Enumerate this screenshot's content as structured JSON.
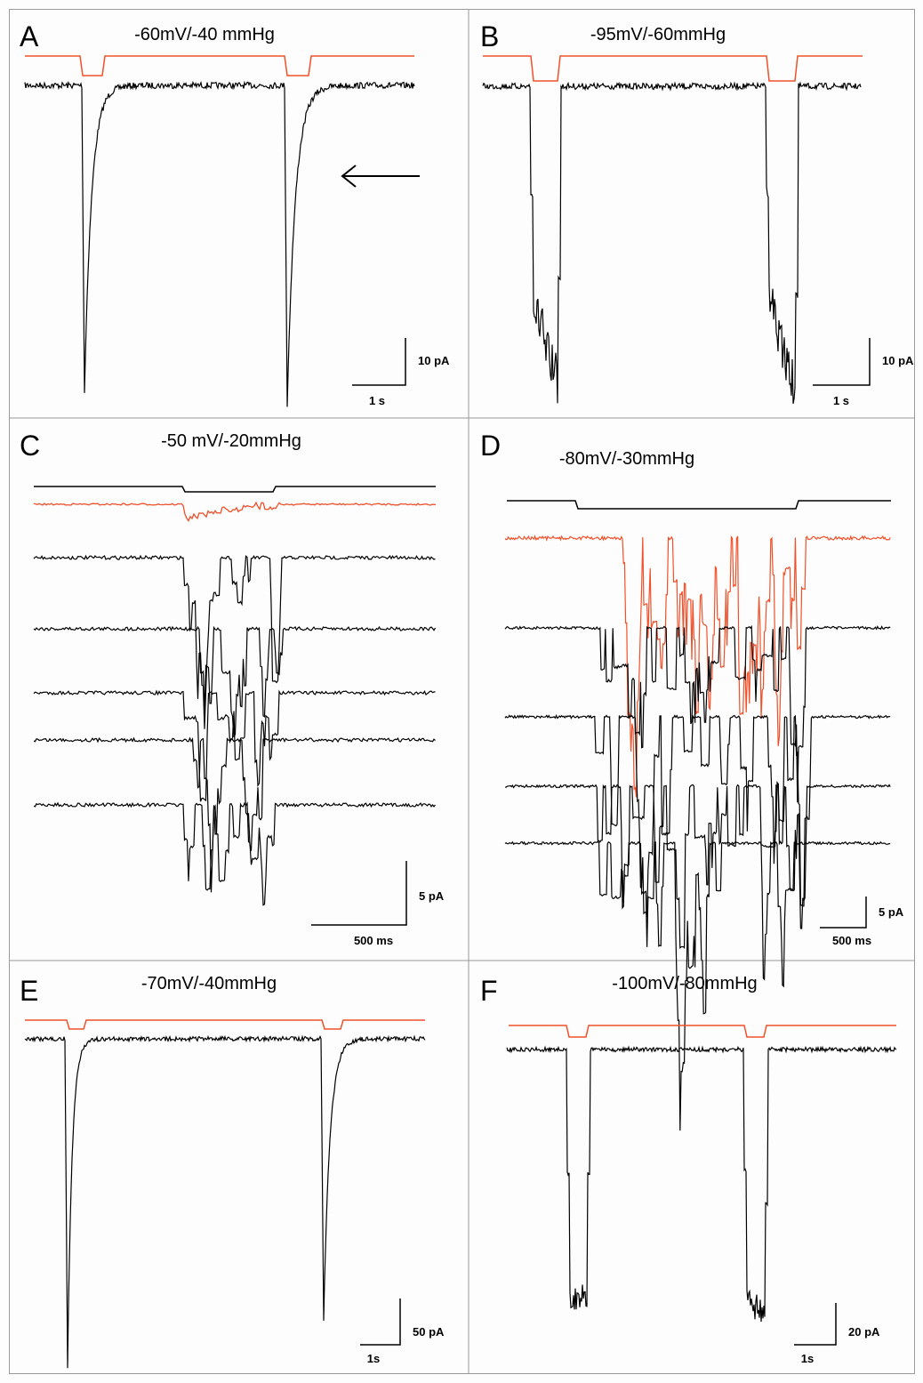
{
  "panels": [
    {
      "label": "A",
      "title": "-60mV/-40 mmHg",
      "scale_y": "10 pA",
      "scale_x": "1 s"
    },
    {
      "label": "B",
      "title": "-95mV/-60mmHg",
      "scale_y": "10 pA",
      "scale_x": "1 s"
    },
    {
      "label": "C",
      "title": "-50 mV/-20mmHg",
      "scale_y": "5 pA",
      "scale_x": "500 ms"
    },
    {
      "label": "D",
      "title": "-80mV/-30mmHg",
      "scale_y": "5 pA",
      "scale_x": "500 ms"
    },
    {
      "label": "E",
      "title": "-70mV/-40mmHg",
      "scale_y": "50 pA",
      "scale_x": "1s"
    },
    {
      "label": "F",
      "title": "-100mV/-80mmHg",
      "scale_y": "20 pA",
      "scale_x": "1s"
    }
  ]
}
